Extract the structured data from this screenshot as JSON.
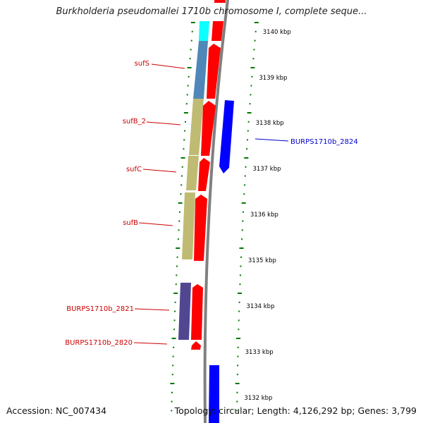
{
  "title": "Burkholderia pseudomallei 1710b chromosome I, complete seque...",
  "footer": {
    "accession": "Accession: NC_007434",
    "topology": "Topology: circular; Length: 4,126,292 bp; Genes: 3,799"
  },
  "colors": {
    "forward_gene": "#ff0000",
    "reverse_gene": "#0000ff",
    "cog_cyan": "#00ffff",
    "cog_steelblue": "#4682b4",
    "cog_khaki": "#bdb76b",
    "cog_darkslateblue": "#483d8b",
    "ticks": "#007700",
    "backbone": "#808080",
    "label_forward": "#cc0000",
    "label_reverse": "#0000cc"
  },
  "scale_labels": [
    "3140 kbp",
    "3139 kbp",
    "3138 kbp",
    "3137 kbp",
    "3136 kbp",
    "3135 kbp",
    "3134 kbp",
    "3133 kbp",
    "3132 kbp"
  ],
  "gene_labels": [
    {
      "text": "sufS",
      "strand": "forward"
    },
    {
      "text": "sufB_2",
      "strand": "forward"
    },
    {
      "text": "sufC",
      "strand": "forward"
    },
    {
      "text": "sufB",
      "strand": "forward"
    },
    {
      "text": "BURPS1710b_2821",
      "strand": "forward"
    },
    {
      "text": "BURPS1710b_2820",
      "strand": "forward"
    },
    {
      "text": "BURPS1710b_2824",
      "strand": "reverse"
    }
  ]
}
